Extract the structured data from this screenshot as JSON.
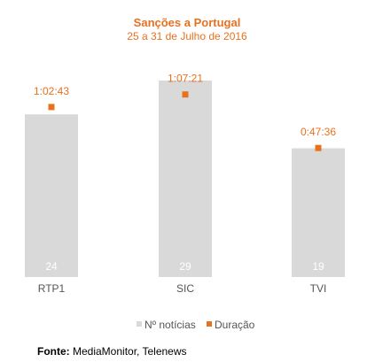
{
  "chart_data": {
    "type": "bar",
    "title": "Sanções a Portugal",
    "subtitle": "25 a 31 de Julho de 2016",
    "categories": [
      "RTP1",
      "SIC",
      "TVI"
    ],
    "series": [
      {
        "name": "Nº notícias",
        "type": "bar",
        "values": [
          24,
          29,
          19
        ],
        "color": "#d9d9d9"
      },
      {
        "name": "Duração",
        "type": "scatter",
        "values": [
          "1:02:43",
          "1:07:21",
          "0:47:36"
        ],
        "seconds": [
          3763,
          4041,
          2856
        ],
        "color": "#e8711e"
      }
    ],
    "ylim_count": [
      0,
      32
    ],
    "ylim_seconds": [
      0,
      4800
    ],
    "grid": false,
    "legend": "bottom"
  },
  "source": {
    "label": "Fonte:",
    "text": "MediaMonitor, Telenews"
  }
}
